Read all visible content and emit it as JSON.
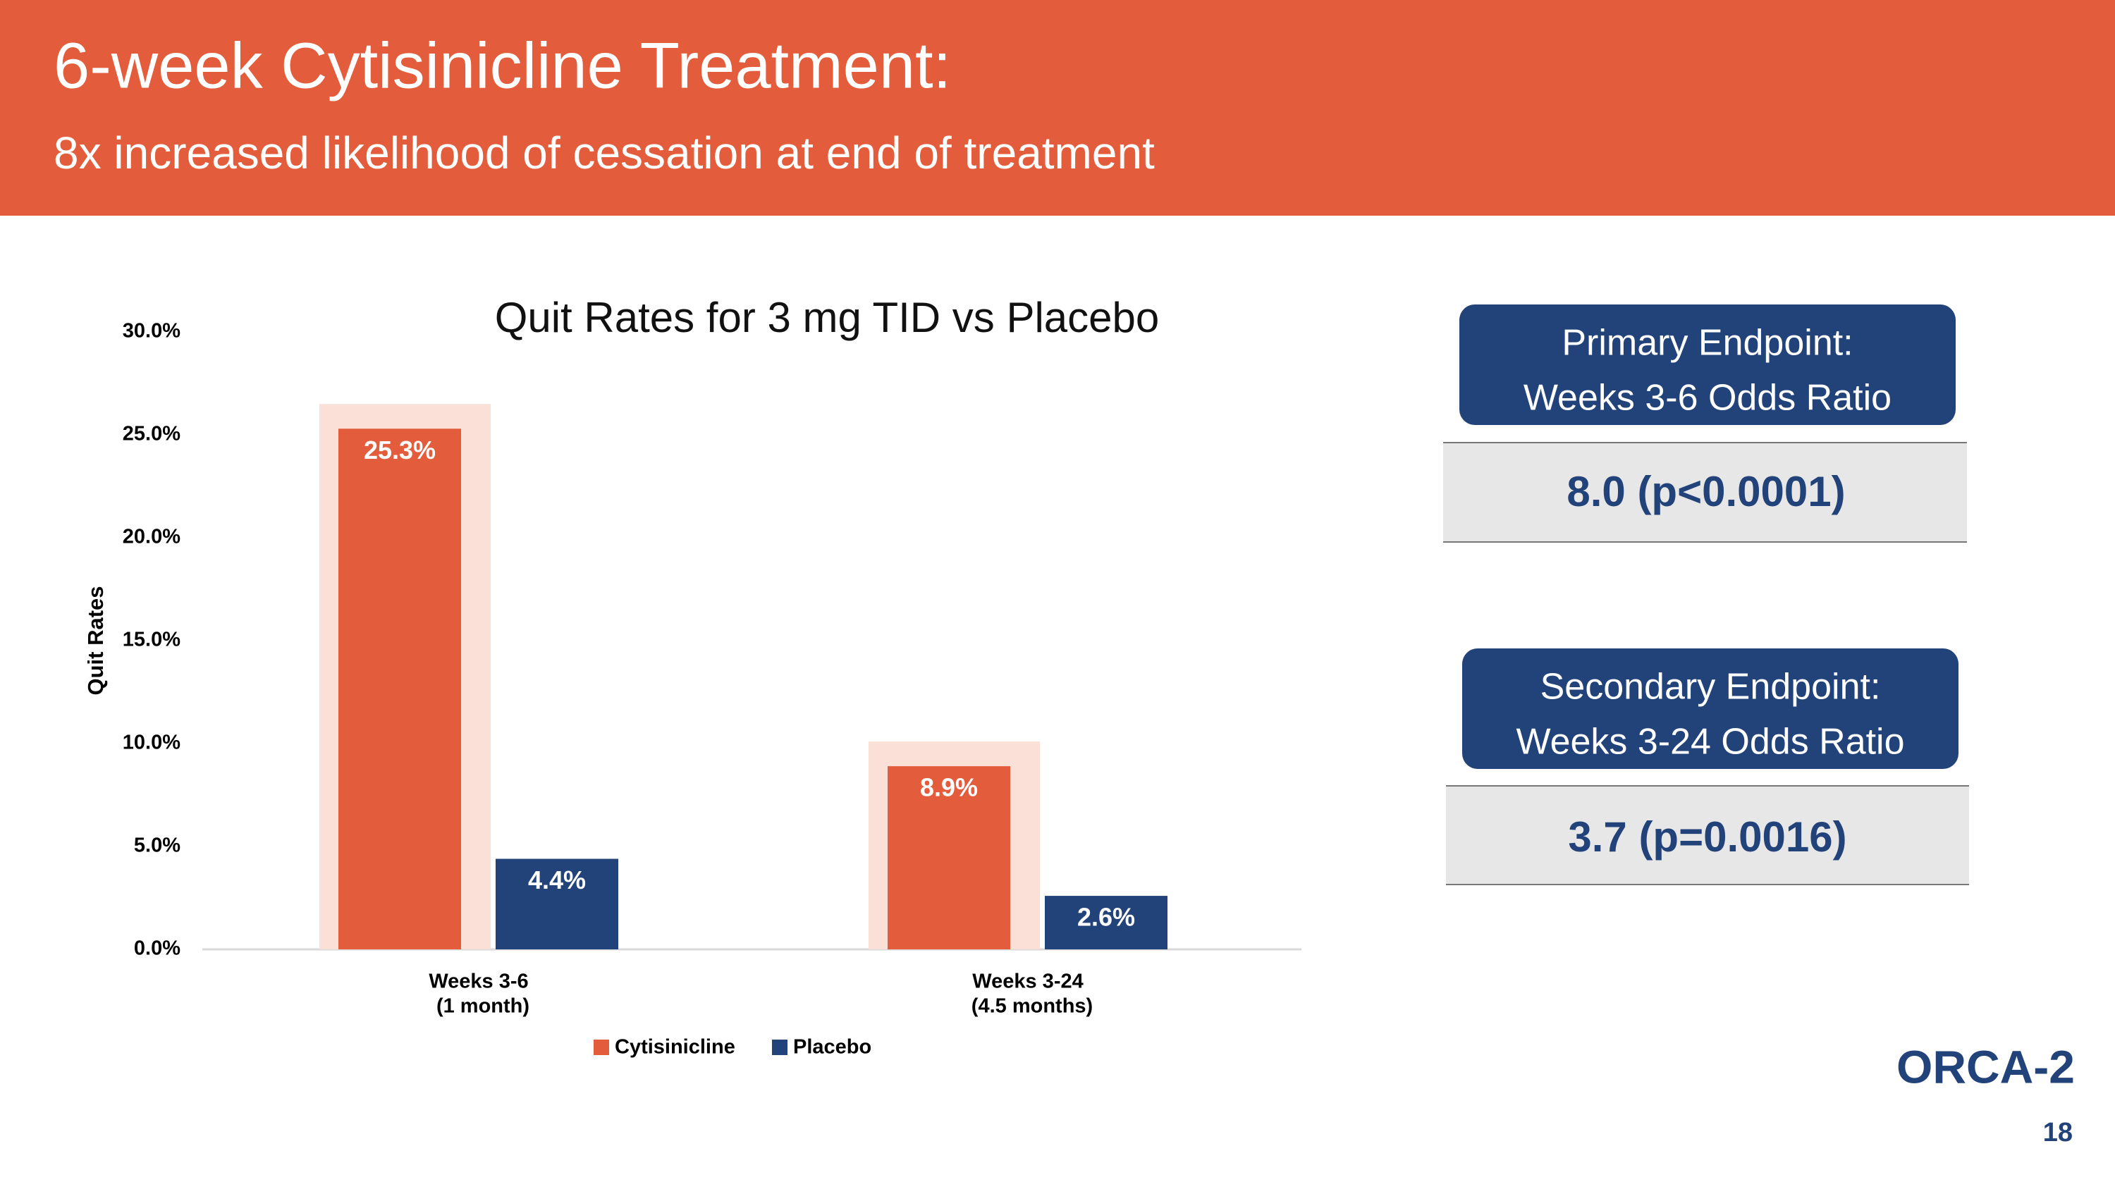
{
  "header": {
    "title": "6-week Cytisinicline Treatment:",
    "subtitle": "8x increased likelihood of cessation at end of treatment"
  },
  "chart_data": {
    "type": "bar",
    "title": "Quit Rates for 3 mg TID vs Placebo",
    "y_label": "Quit Rates",
    "categories": [
      "Weeks 3-6",
      "Weeks 3-24"
    ],
    "category_notes": [
      "(1 month)",
      "(4.5 months)"
    ],
    "series": [
      {
        "name": "Cytisinicline",
        "color": "#e35d3c",
        "highlight_color": "#fbe0d8",
        "values": [
          25.3,
          8.9
        ],
        "value_labels": [
          "25.3%",
          "8.9%"
        ]
      },
      {
        "name": "Placebo",
        "color": "#22427a",
        "values": [
          4.4,
          2.6
        ],
        "value_labels": [
          "4.4%",
          "2.6%"
        ]
      }
    ],
    "ylim": [
      0,
      30
    ],
    "yticks": [
      {
        "value": 0,
        "label": "0.0%"
      },
      {
        "value": 5,
        "label": "5.0%"
      },
      {
        "value": 10,
        "label": "10.0%"
      },
      {
        "value": 15,
        "label": "15.0%"
      },
      {
        "value": 20,
        "label": "20.0%"
      },
      {
        "value": 25,
        "label": "25.0%"
      },
      {
        "value": 30,
        "label": "30.0%"
      }
    ],
    "grid": false,
    "legend": "bottom"
  },
  "endpoints": [
    {
      "title_lines": [
        "Primary Endpoint:",
        "Weeks 3-6 Odds Ratio"
      ],
      "value": "8.0 (p<0.0001)"
    },
    {
      "title_lines": [
        "Secondary Endpoint:",
        "Weeks 3-24 Odds Ratio"
      ],
      "value": "3.7 (p=0.0016)"
    }
  ],
  "footer": {
    "logo": "ORCA-2",
    "page_number": "18"
  }
}
